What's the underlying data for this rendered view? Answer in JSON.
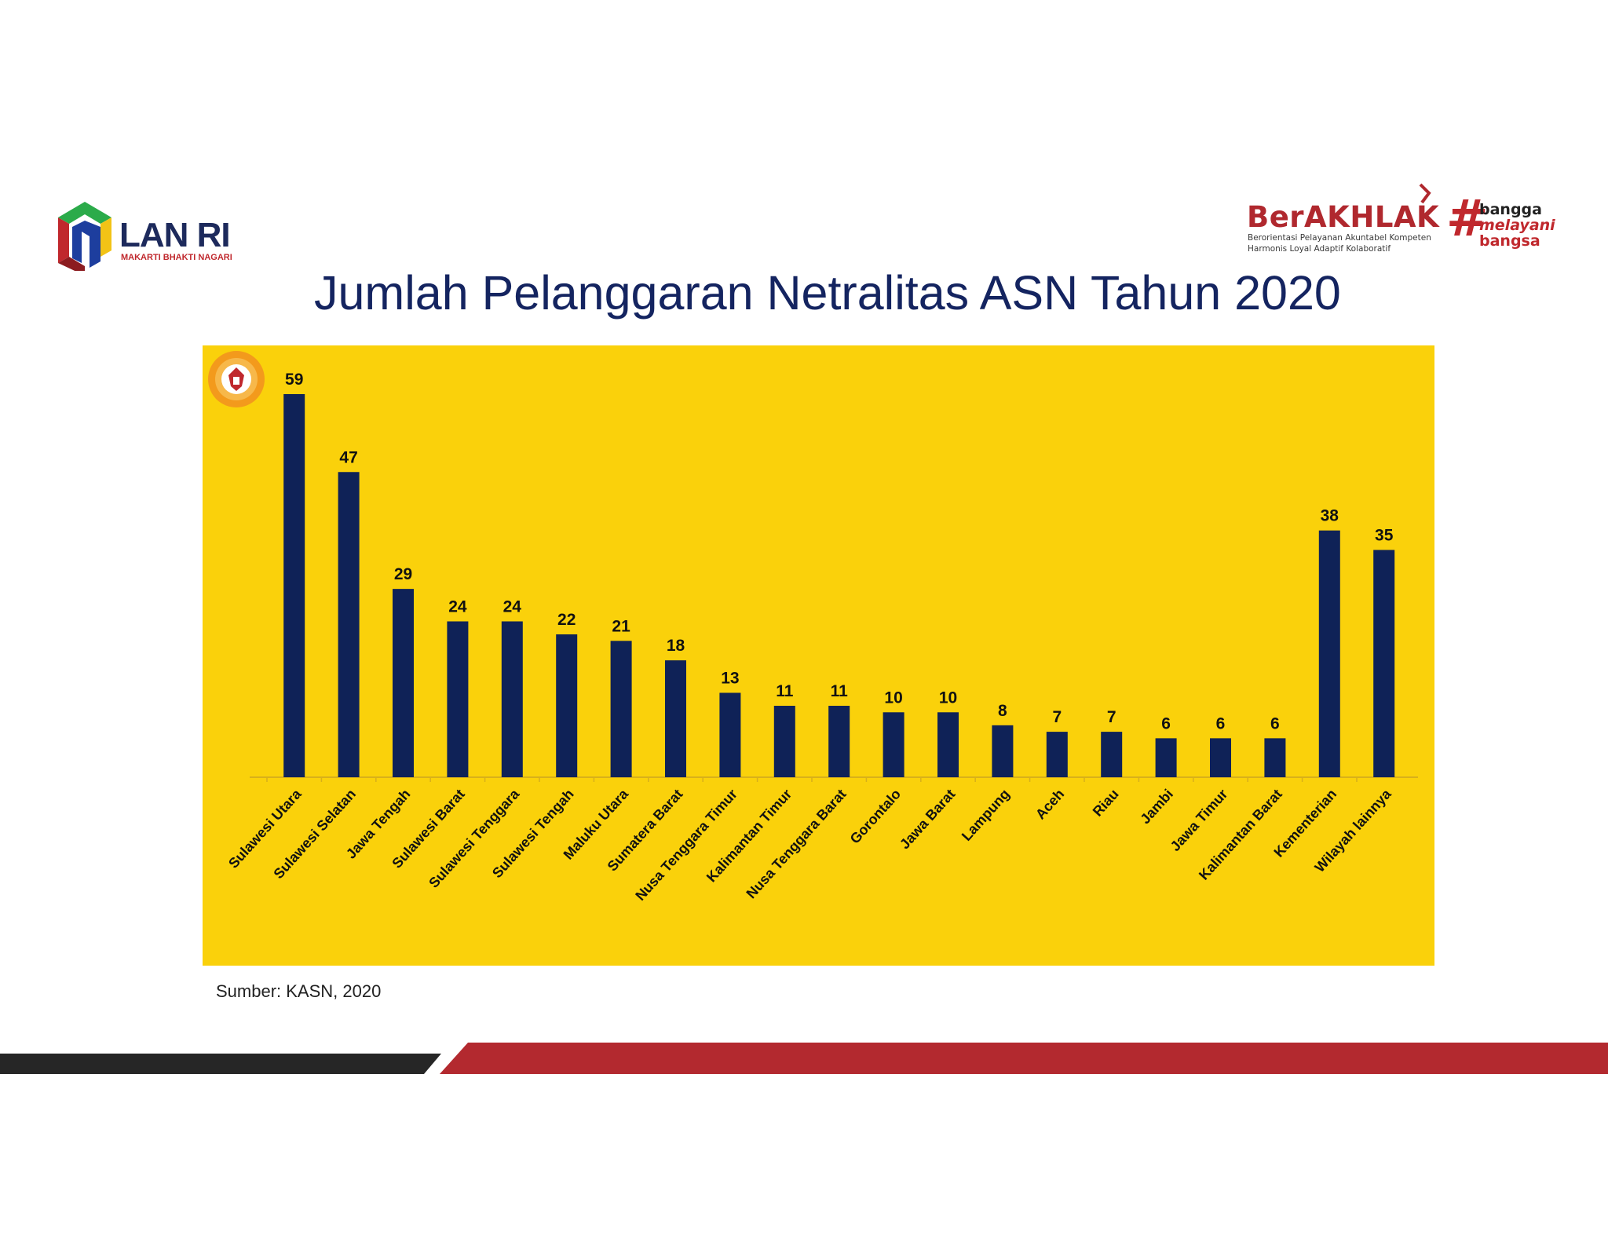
{
  "header": {
    "lan_logo": {
      "name": "LAN RI",
      "tagline": "MAKARTI BHAKTI NAGARI",
      "icon": "lan-ri-logo-icon"
    },
    "berakhlak_logo": {
      "word": "BerAKHLAK",
      "line1": "Berorientasi Pelayanan Akuntabel Kompeten",
      "line2": "Harmonis Loyal Adaptif Kolaboratif"
    },
    "bangga_logo": {
      "hash": "#",
      "words": [
        "bangga",
        "melayani",
        "bangsa"
      ]
    }
  },
  "title": "Jumlah Pelanggaran Netralitas ASN Tahun 2020",
  "source": "Sumber: KASN, 2020",
  "colors": {
    "panel": "#fad10b",
    "bar": "#0f2257",
    "title": "#142460",
    "accent_red": "#b3292f",
    "footer_dark": "#262626"
  },
  "chart_data": {
    "type": "bar",
    "title": "Jumlah Pelanggaran Netralitas ASN Tahun 2020",
    "xlabel": "",
    "ylabel": "",
    "ylim": [
      0,
      59
    ],
    "grid": false,
    "legend": "none",
    "data_labels": true,
    "categories": [
      "Sulawesi Utara",
      "Sulawesi Selatan",
      "Jawa Tengah",
      "Sulawesi Barat",
      "Sulawesi Tenggara",
      "Sulawesi Tengah",
      "Maluku Utara",
      "Sumatera Barat",
      "Nusa Tenggara Timur",
      "Kalimantan Timur",
      "Nusa Tenggara Barat",
      "Gorontalo",
      "Jawa Barat",
      "Lampung",
      "Aceh",
      "Riau",
      "Jambi",
      "Jawa Timur",
      "Kalimantan Barat",
      "Kementerian",
      "Wilayah lainnya"
    ],
    "values": [
      59,
      47,
      29,
      24,
      24,
      22,
      21,
      18,
      13,
      11,
      11,
      10,
      10,
      8,
      7,
      7,
      6,
      6,
      6,
      38,
      35
    ]
  }
}
